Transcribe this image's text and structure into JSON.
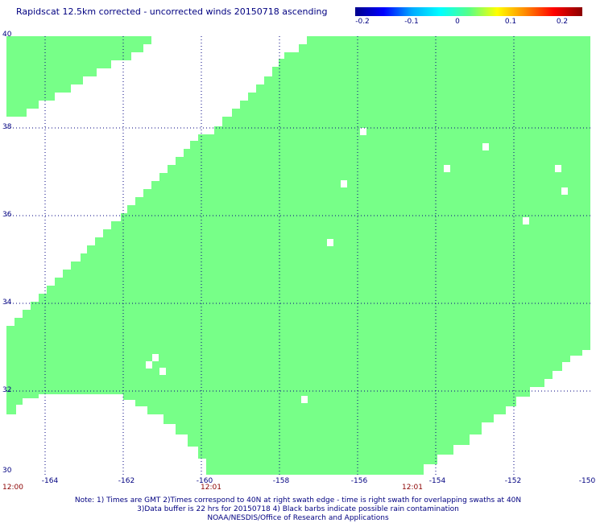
{
  "title": "Rapidscat 12.5km corrected - uncorrected winds 20150718 ascending",
  "colorbar": {
    "ticks": [
      "-0.2",
      "-0.1",
      "0",
      "0.1",
      "0.2"
    ],
    "colors": [
      "#00008c",
      "#0000ff",
      "#00ffff",
      "#ffff00",
      "#ff0000",
      "#8b0000"
    ]
  },
  "map": {
    "lat_labels": [
      "40",
      "38",
      "36",
      "34",
      "32",
      "30"
    ],
    "lon_labels": [
      "-164",
      "-162",
      "-160",
      "-158",
      "-156",
      "-154",
      "-152",
      "-150"
    ],
    "time_labels": [
      "12:00",
      "12:01",
      "12:01"
    ],
    "lat_range": [
      30,
      40
    ],
    "lon_range": [
      -165,
      -150
    ],
    "swath_color": "#77ff88",
    "grid_color": "#000080",
    "value_shown": "0"
  },
  "notes": {
    "line1": "Note: 1) Times are GMT 2)Times correspond to 40N at right swath edge - time is right swath for overlapping swaths at 40N",
    "line2": "3)Data buffer is 22 hrs for 20150718 4) Black barbs indicate possible rain contamination",
    "line3": "NOAA/NESDIS/Office of Research and Applications"
  }
}
